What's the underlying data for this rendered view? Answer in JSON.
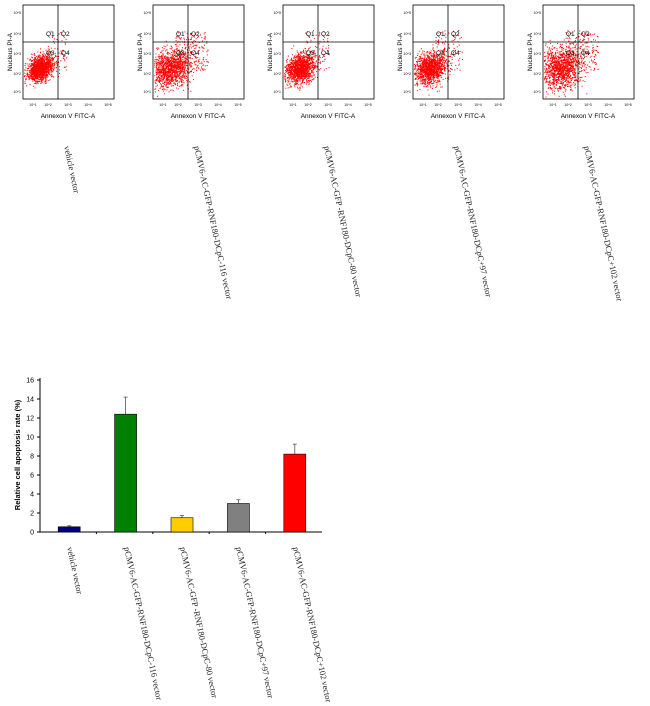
{
  "flow_plots": {
    "xlabel": "Annexon V FITC-A",
    "ylabel": "Nucleus PI-A",
    "quadrants": [
      "Q1",
      "Q2",
      "Q3",
      "Q4"
    ],
    "ticks": [
      "10^1",
      "10^2",
      "10^3",
      "10^4",
      "10^5"
    ],
    "point_color": "#ff0000",
    "samples": [
      "vehicle vector",
      "pCMV6-AC-GFP-RNF180-DCpC-116 vector",
      "pCMV6-AC-GFP -RNF180-DCpC-80 vector",
      "pCMV6-AC-GFP-RNF180-DCpC+97 vector",
      "pCMV6-AC-GFP-RNF180-DCpC+102 vector"
    ]
  },
  "chart_data": {
    "type": "bar",
    "categories": [
      "vehicle vector",
      "pCMV6-AC-GFP-RNF180-DCpC-116 vector",
      "pCMV6-AC-GFP -RNF180-DCpC-80 vector",
      "pCMV6-AC-GFP-RNF180-DCpC+97 vector",
      "pCMV6-AC-GFP-RNF180-DCpC+102 vector"
    ],
    "values": [
      0.55,
      12.4,
      1.5,
      3.0,
      8.2
    ],
    "errors": [
      0.1,
      1.8,
      0.25,
      0.4,
      1.05
    ],
    "colors": [
      "#000080",
      "#008000",
      "#ffcc00",
      "#808080",
      "#ff0000"
    ],
    "xlabel": "",
    "ylabel": "Relative cell apoptosis rate (%)",
    "ylim": [
      0,
      16
    ],
    "yticks": [
      "0",
      "2",
      "4",
      "6",
      "8",
      "10",
      "12",
      "14",
      "16"
    ],
    "grid": false
  }
}
